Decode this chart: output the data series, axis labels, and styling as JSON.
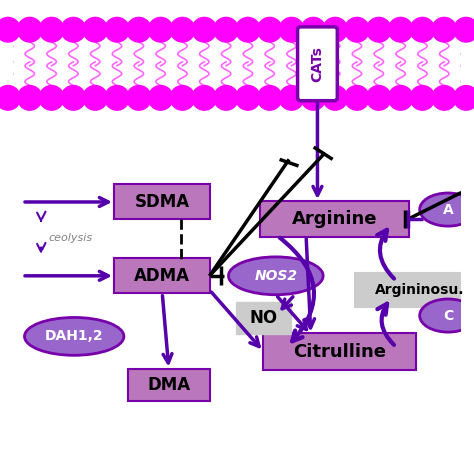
{
  "bg_color": "#ffffff",
  "membrane_color": "#ff00ff",
  "lipid_color": "#ff66ff",
  "box_bg": "#bb77bb",
  "box_border": "#7700aa",
  "gray_bg": "#cccccc",
  "gray_border": "#aaaaaa",
  "ellipse_bg": "#9966cc",
  "ellipse_border": "#5500aa",
  "purple": "#5500aa",
  "black": "#000000",
  "cats_label": "CATs",
  "sdma_label": "SDMA",
  "adma_label": "ADMA",
  "dma_label": "DMA",
  "nos2_label": "NOS2",
  "no_label": "NO",
  "arginine_label": "Arginine",
  "citrulline_label": "Citrulline",
  "argininosucc_label": "Argininosu.",
  "proteolysis_label": "ceolysis",
  "ddah_label": "DAH1,2",
  "a_label": "A",
  "c_label": "C"
}
